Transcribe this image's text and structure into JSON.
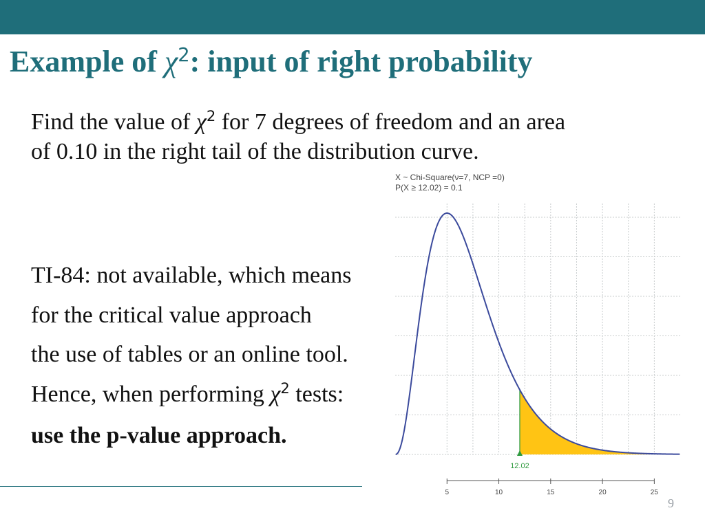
{
  "title": {
    "before": "Example of ",
    "symbol": "χ",
    "exponent": "2",
    "after": ": input of right probability"
  },
  "problem": {
    "line1_before": "Find the value of ",
    "symbol": "χ",
    "exponent": "2",
    "line1_after": " for 7 degrees of freedom and an area",
    "line2": "of 0.10 in the right tail of the distribution curve."
  },
  "notes": [
    {
      "text": "TI-84: not available, which means"
    },
    {
      "text": "for the critical value approach"
    },
    {
      "text": "the use of tables or an online tool."
    },
    {
      "before": "Hence, when performing ",
      "symbol": "χ",
      "exponent": "2",
      "after": " tests:"
    },
    {
      "text": "use the p-value approach.",
      "bold": true
    }
  ],
  "page_number": "9",
  "colors": {
    "theme": "#1f6e7a",
    "curve": "#3b4a9c",
    "fill": "#ffc414",
    "marker": "#2e9a3e",
    "grid": "#c8cccd"
  },
  "chart_data": {
    "type": "area",
    "title_lines": [
      "X ~ Chi-Square(ν=7, NCP =0)",
      "P(X ≥ 12.02) = 0.1"
    ],
    "distribution": {
      "name": "chi-square",
      "df": 7,
      "ncp": 0
    },
    "critical_value": 12.02,
    "critical_label": "12.02",
    "right_tail_probability": 0.1,
    "shaded_region": "right tail, x ≥ 12.02",
    "x_ticks": [
      5,
      10,
      15,
      20,
      25
    ],
    "x_tick_labels": [
      "5",
      "10",
      "15",
      "20",
      "25"
    ],
    "xlim": [
      0,
      27.5
    ],
    "grid": true
  }
}
